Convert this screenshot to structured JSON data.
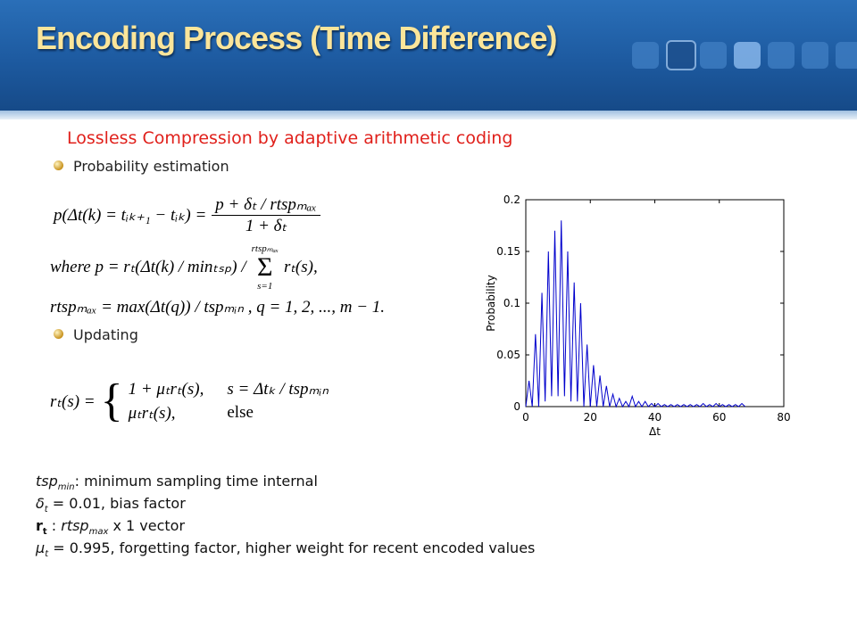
{
  "header": {
    "title": "Encoding Process (Time Difference)"
  },
  "subtitle": "Lossless Compression by adaptive arithmetic coding",
  "bullets": [
    "Probability estimation",
    "Updating"
  ],
  "equations": {
    "eq1": {
      "lhs": "p(Δt(k) = tᵢₖ₊₁ − tᵢₖ) =",
      "numerator": "p + δₜ / rtspₘₐₓ",
      "denominator": "1 + δₜ"
    },
    "eq2": {
      "lhs": "where p = rₜ(Δt(k) / minₜₛₚ) /",
      "sum_top": "rtspₘₐₓ",
      "sum_sign": "Σ",
      "sum_bottom": "s=1",
      "rhs": "rₜ(s),"
    },
    "eq3": {
      "text": "rtspₘₐₓ = max(Δt(q)) / tspₘᵢₙ , q = 1, 2, ..., m − 1."
    },
    "eq4": {
      "lhs": "rₜ(s) =",
      "case1": "1 + μₜrₜ(s),",
      "cond1": "s = Δtₖ / tspₘᵢₙ",
      "case2": "μₜrₜ(s),",
      "cond2": "else"
    }
  },
  "notes": [
    [
      "tsp",
      "min",
      ": minimum sampling time internal"
    ],
    [
      "δ",
      "t",
      " = 0.01, bias factor"
    ],
    [
      "r",
      "t",
      " : ",
      "rtsp",
      "max",
      " x 1 vector"
    ],
    [
      "μ",
      "t",
      " = 0.995, forgetting factor, higher weight for recent encoded values"
    ]
  ],
  "chart_data": {
    "type": "line",
    "xlabel": "Δt",
    "ylabel": "Probability",
    "xlim": [
      0,
      80
    ],
    "ylim": [
      0,
      0.2
    ],
    "xticks": [
      0,
      20,
      40,
      60,
      80
    ],
    "yticks": [
      0,
      0.05,
      0.1,
      0.15,
      0.2
    ],
    "series": [
      {
        "color": "#0000cc",
        "x": [
          0,
          1,
          2,
          3,
          4,
          5,
          6,
          7,
          8,
          9,
          10,
          11,
          12,
          13,
          14,
          15,
          16,
          17,
          18,
          19,
          20,
          21,
          22,
          23,
          24,
          25,
          26,
          27,
          28,
          29,
          30,
          31,
          32,
          33,
          34,
          35,
          36,
          37,
          38,
          39,
          40,
          41,
          42,
          43,
          44,
          45,
          46,
          47,
          48,
          49,
          50,
          51,
          52,
          53,
          54,
          55,
          56,
          57,
          58,
          59,
          60,
          61,
          62,
          63,
          64,
          65,
          66,
          67,
          68
        ],
        "values": [
          0,
          0.025,
          0,
          0.07,
          0,
          0.11,
          0.005,
          0.15,
          0.01,
          0.17,
          0.01,
          0.18,
          0.01,
          0.15,
          0.005,
          0.12,
          0.005,
          0.1,
          0,
          0.06,
          0,
          0.04,
          0,
          0.03,
          0,
          0.02,
          0,
          0.012,
          0,
          0.008,
          0,
          0.005,
          0,
          0.01,
          0,
          0.005,
          0,
          0.005,
          0,
          0.003,
          0,
          0.003,
          0,
          0.002,
          0,
          0.002,
          0,
          0.002,
          0,
          0.002,
          0,
          0.002,
          0,
          0.002,
          0,
          0.003,
          0,
          0.002,
          0,
          0.003,
          0,
          0.002,
          0,
          0.002,
          0,
          0.002,
          0,
          0.003,
          0
        ]
      }
    ]
  }
}
